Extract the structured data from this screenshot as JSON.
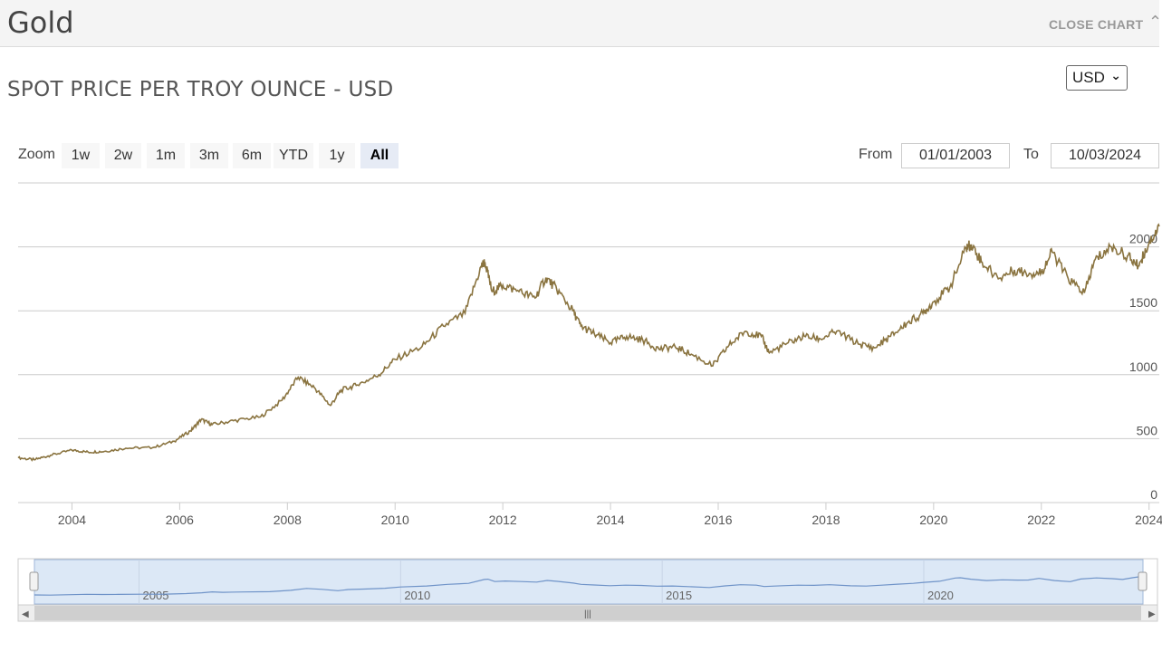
{
  "header": {
    "title": "Gold",
    "close_label": "CLOSE CHART",
    "close_icon": "chevron-up-icon"
  },
  "subtitle": "SPOT PRICE PER TROY OUNCE - USD",
  "currency": {
    "selected": "USD"
  },
  "zoom": {
    "label": "Zoom",
    "buttons": [
      "1w",
      "2w",
      "1m",
      "3m",
      "6m",
      "YTD",
      "1y",
      "All"
    ],
    "active": "All"
  },
  "range": {
    "from_label": "From",
    "from_value": "01/01/2003",
    "to_label": "To",
    "to_value": "10/03/2024"
  },
  "colors": {
    "line": "#8a7440",
    "navigator_line": "#6f93c8",
    "navigator_fill": "#dce8f6",
    "grid": "#cccccc"
  },
  "chart_data": {
    "type": "line",
    "title": "SPOT PRICE PER TROY OUNCE - USD",
    "xlabel": "",
    "ylabel": "",
    "xlim": [
      2003.0,
      2024.19
    ],
    "ylim": [
      0,
      2500
    ],
    "y_ticks": [
      0,
      500,
      1000,
      1500,
      2000
    ],
    "y_tick_labels": [
      "0",
      "500",
      "1000",
      "1500",
      "2000"
    ],
    "x_ticks": [
      2004,
      2006,
      2008,
      2010,
      2012,
      2014,
      2016,
      2018,
      2020,
      2022,
      2024
    ],
    "x_tick_labels": [
      "2004",
      "2006",
      "2008",
      "2010",
      "2012",
      "2014",
      "2016",
      "2018",
      "2020",
      "2022",
      "2024"
    ],
    "series": [
      {
        "name": "Gold",
        "x": [
          2003.0,
          2003.3,
          2003.6,
          2004.0,
          2004.3,
          2004.6,
          2005.0,
          2005.5,
          2005.9,
          2006.2,
          2006.4,
          2006.6,
          2007.0,
          2007.5,
          2007.9,
          2008.2,
          2008.5,
          2008.8,
          2009.0,
          2009.3,
          2009.7,
          2010.0,
          2010.5,
          2010.9,
          2011.3,
          2011.6,
          2011.67,
          2011.8,
          2012.0,
          2012.3,
          2012.6,
          2012.8,
          2013.0,
          2013.3,
          2013.45,
          2013.7,
          2014.0,
          2014.3,
          2014.6,
          2014.9,
          2015.2,
          2015.5,
          2015.9,
          2016.2,
          2016.5,
          2016.8,
          2016.95,
          2017.3,
          2017.6,
          2017.9,
          2018.2,
          2018.6,
          2018.9,
          2019.2,
          2019.5,
          2019.8,
          2020.0,
          2020.3,
          2020.6,
          2020.7,
          2020.9,
          2021.2,
          2021.5,
          2021.8,
          2022.0,
          2022.2,
          2022.5,
          2022.8,
          2023.0,
          2023.3,
          2023.6,
          2023.8,
          2024.0,
          2024.19
        ],
        "values": [
          350,
          335,
          370,
          410,
          395,
          400,
          425,
          430,
          480,
          560,
          650,
          610,
          640,
          670,
          800,
          980,
          900,
          760,
          880,
          920,
          1000,
          1120,
          1220,
          1380,
          1480,
          1850,
          1880,
          1650,
          1700,
          1650,
          1600,
          1760,
          1670,
          1500,
          1380,
          1320,
          1250,
          1300,
          1270,
          1200,
          1220,
          1160,
          1070,
          1230,
          1340,
          1300,
          1170,
          1250,
          1300,
          1280,
          1340,
          1240,
          1210,
          1300,
          1400,
          1480,
          1570,
          1680,
          1990,
          2020,
          1880,
          1750,
          1820,
          1790,
          1800,
          1960,
          1750,
          1640,
          1900,
          2000,
          1930,
          1850,
          2030,
          2160
        ]
      }
    ],
    "navigator": {
      "x_tick_labels": [
        "2005",
        "2010",
        "2015",
        "2020"
      ],
      "x_ticks": [
        2005,
        2010,
        2015,
        2020
      ]
    },
    "grid": true
  }
}
